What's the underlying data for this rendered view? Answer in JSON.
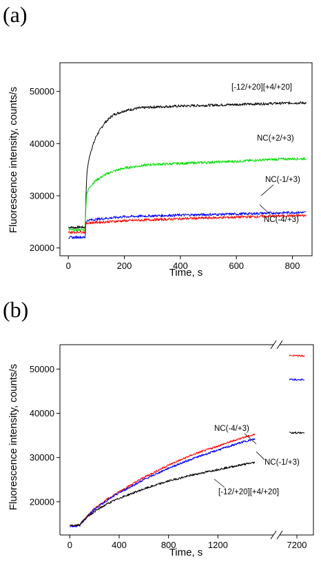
{
  "chart_data": [
    {
      "panel": "(a)",
      "type": "line",
      "xlabel": "Time, s",
      "ylabel": "Fluorescence intensity, counts/s",
      "xlim": [
        -30,
        870
      ],
      "ylim": [
        18500,
        55500
      ],
      "xticks": [
        0,
        200,
        400,
        600,
        800
      ],
      "yticks": [
        20000,
        30000,
        40000,
        50000
      ],
      "xtick_labels": [
        "0",
        "200",
        "400",
        "600",
        "800"
      ],
      "ytick_labels": [
        "20000",
        "30000",
        "40000",
        "50000"
      ],
      "series": [
        {
          "name": "[-12/+20][+4/+20]",
          "color": "#000000",
          "x": [
            0,
            20,
            40,
            60,
            63,
            66,
            70,
            80,
            100,
            130,
            160,
            200,
            250,
            300,
            400,
            500,
            600,
            700,
            800,
            850
          ],
          "y": [
            24000,
            23900,
            24000,
            23950,
            30000,
            34000,
            36000,
            38500,
            41500,
            44000,
            45500,
            46300,
            46800,
            47000,
            47200,
            47350,
            47500,
            47650,
            47800,
            47800
          ]
        },
        {
          "name": "NC(+2/+3)",
          "color": "#00e000",
          "x": [
            0,
            20,
            40,
            60,
            63,
            66,
            70,
            80,
            100,
            130,
            160,
            200,
            250,
            300,
            400,
            500,
            600,
            700,
            800,
            850
          ],
          "y": [
            23500,
            23400,
            23500,
            23450,
            28500,
            30500,
            31000,
            32000,
            33000,
            34000,
            34700,
            35300,
            35700,
            36000,
            36200,
            36400,
            36600,
            36900,
            37100,
            37100
          ]
        },
        {
          "name": "NC(-1/+3)",
          "color": "#0000ff",
          "x": [
            0,
            20,
            40,
            60,
            63,
            70,
            100,
            200,
            400,
            600,
            800,
            850
          ],
          "y": [
            22000,
            22000,
            22100,
            22000,
            25000,
            25300,
            25500,
            26000,
            26300,
            26500,
            26800,
            26800
          ]
        },
        {
          "name": "NC(-4/+3)",
          "color": "#ff0000",
          "x": [
            0,
            20,
            40,
            60,
            63,
            70,
            100,
            200,
            400,
            600,
            800,
            850
          ],
          "y": [
            23000,
            23000,
            23100,
            23000,
            24700,
            24800,
            24900,
            25200,
            25600,
            25900,
            26200,
            26200
          ]
        }
      ],
      "annotations": [
        "[-12/+20][+4/+20]",
        "NC(+2/+3)",
        "NC(-1/+3)",
        "NC(-4/+3)"
      ]
    },
    {
      "panel": "(b)",
      "type": "line",
      "xlabel": "Time, s",
      "ylabel": "Fluorescence intensity, counts/s",
      "xlim": [
        -80,
        1650
      ],
      "ylim": [
        12500,
        55500
      ],
      "x_axis_break": true,
      "xticks": [
        0,
        400,
        800,
        1200
      ],
      "xtick_labels": [
        "0",
        "400",
        "800",
        "1200"
      ],
      "xticks_after_break": [
        7200
      ],
      "xtick_labels_after_break": [
        "7200"
      ],
      "yticks": [
        20000,
        30000,
        40000,
        50000
      ],
      "ytick_labels": [
        "20000",
        "30000",
        "40000",
        "50000"
      ],
      "series": [
        {
          "name": "NC(-4/+3)",
          "color": "#ff0000",
          "x": [
            0,
            40,
            80,
            100,
            150,
            200,
            300,
            400,
            600,
            800,
            1000,
            1200,
            1400,
            1500
          ],
          "y": [
            14600,
            14600,
            14700,
            15500,
            17000,
            18500,
            20500,
            22300,
            25500,
            28300,
            30700,
            32600,
            34500,
            35200
          ],
          "after_break": {
            "x": 7200,
            "y": 53000
          }
        },
        {
          "name": "NC(-1/+3)",
          "color": "#0000ff",
          "x": [
            0,
            40,
            80,
            100,
            150,
            200,
            300,
            400,
            600,
            800,
            1000,
            1200,
            1400,
            1500
          ],
          "y": [
            14500,
            14500,
            14600,
            15400,
            16900,
            18300,
            20300,
            22000,
            25000,
            27600,
            29800,
            31700,
            33500,
            34200
          ],
          "after_break": {
            "x": 7200,
            "y": 47600
          }
        },
        {
          "name": "[-12/+20][+4/+20]",
          "color": "#000000",
          "x": [
            0,
            40,
            80,
            100,
            150,
            200,
            300,
            400,
            600,
            800,
            1000,
            1200,
            1400,
            1500
          ],
          "y": [
            14700,
            14700,
            14800,
            15500,
            16800,
            17800,
            19500,
            20800,
            22900,
            24700,
            26100,
            27300,
            28400,
            28900
          ],
          "after_break": {
            "x": 7200,
            "y": 35600
          }
        }
      ],
      "annotations": [
        "NC(-4/+3)",
        "NC(-1/+3)",
        "[-12/+20][+4/+20]"
      ]
    }
  ]
}
